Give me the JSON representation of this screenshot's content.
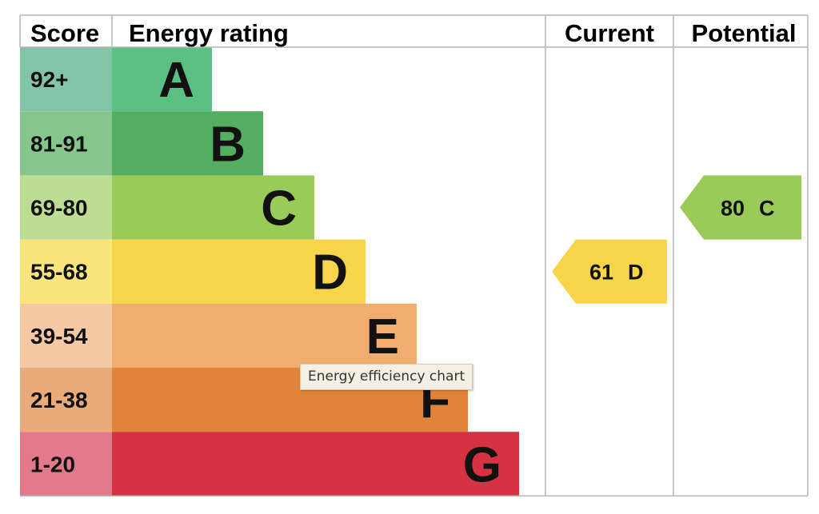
{
  "chart_data": {
    "type": "table",
    "headers": {
      "score": "Score",
      "rating": "Energy rating",
      "current": "Current",
      "potential": "Potential"
    },
    "bands": [
      {
        "range": "92+",
        "letter": "A",
        "color": "#5ac183",
        "score_color": "#81c4a6"
      },
      {
        "range": "81-91",
        "letter": "B",
        "color": "#53ae62",
        "score_color": "#86c58b"
      },
      {
        "range": "69-80",
        "letter": "C",
        "color": "#9acb59",
        "score_color": "#bedd94"
      },
      {
        "range": "55-68",
        "letter": "D",
        "color": "#f7d549",
        "score_color": "#fae57d"
      },
      {
        "range": "39-54",
        "letter": "E",
        "color": "#efae6f",
        "score_color": "#f4c9a3"
      },
      {
        "range": "21-38",
        "letter": "F",
        "color": "#e0843b",
        "score_color": "#e9ab79"
      },
      {
        "range": "1-20",
        "letter": "G",
        "color": "#d53342",
        "score_color": "#e27a8c"
      }
    ],
    "current": {
      "score": 61,
      "letter": "D",
      "color": "#f7d549"
    },
    "potential": {
      "score": 80,
      "letter": "C",
      "color": "#9acb59"
    }
  },
  "tooltip": {
    "text": "Energy efficiency chart"
  }
}
